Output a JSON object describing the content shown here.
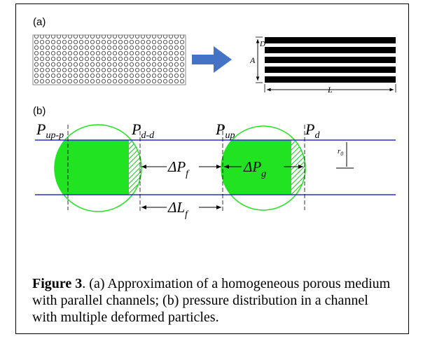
{
  "panel_a": {
    "label": "(a)",
    "dimensions": {
      "D": "D",
      "A": "A",
      "L": "L"
    }
  },
  "panel_b": {
    "label": "(b)",
    "pressures": [
      {
        "base": "P",
        "sub": "up-p"
      },
      {
        "base": "P",
        "sub": "d-d"
      },
      {
        "base": "P",
        "sub": "up"
      },
      {
        "base": "P",
        "sub": "d"
      }
    ],
    "drops": [
      {
        "base": "ΔP",
        "sub": "f"
      },
      {
        "base": "ΔP",
        "sub": "g"
      },
      {
        "base": "ΔL",
        "sub": "f"
      }
    ],
    "radius": {
      "base": "r",
      "sub": "0"
    }
  },
  "caption": {
    "bold": "Figure 3",
    "text": ". (a) Approximation of a homogeneous porous medium with parallel channels; (b) pressure distribution in a channel with multiple deformed particles."
  }
}
